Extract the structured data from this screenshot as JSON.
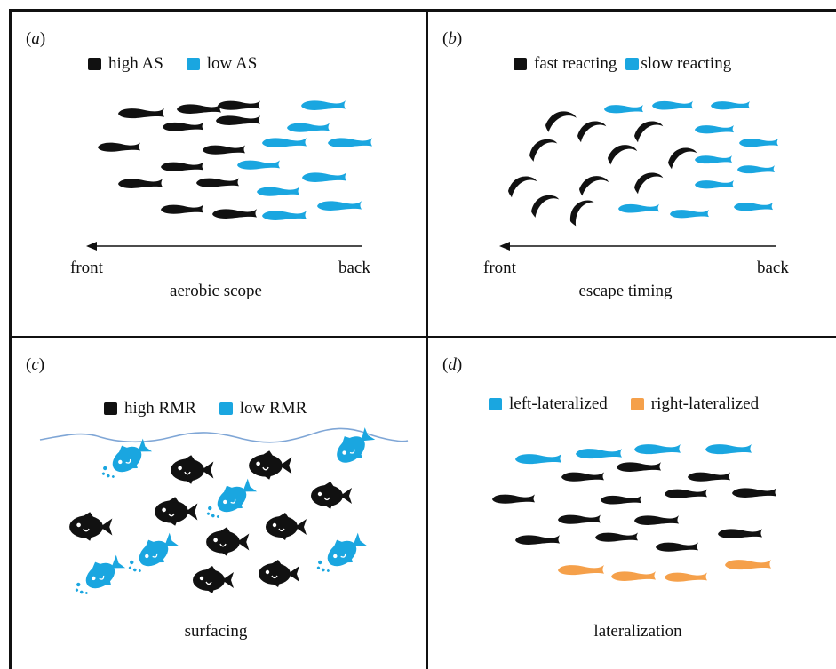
{
  "panels": [
    {
      "id": "a",
      "label_open": "(",
      "label_letter": "a",
      "label_close": ")",
      "legend": [
        {
          "label": "high AS",
          "color": "#111111"
        },
        {
          "label": "low AS",
          "color": "#1aa6e0"
        }
      ],
      "axis": {
        "start": "front",
        "end": "back"
      },
      "caption": "aerobic scope"
    },
    {
      "id": "b",
      "label_open": "(",
      "label_letter": "b",
      "label_close": ")",
      "legend": [
        {
          "label": "fast reacting",
          "color": "#111111"
        },
        {
          "label": "slow reacting",
          "color": "#1aa6e0"
        }
      ],
      "axis": {
        "start": "front",
        "end": "back"
      },
      "caption": "escape timing"
    },
    {
      "id": "c",
      "label_open": "(",
      "label_letter": "c",
      "label_close": ")",
      "legend": [
        {
          "label": "high RMR",
          "color": "#111111"
        },
        {
          "label": "low RMR",
          "color": "#1aa6e0"
        }
      ],
      "caption": "surfacing"
    },
    {
      "id": "d",
      "label_open": "(",
      "label_letter": "d",
      "label_close": ")",
      "legend": [
        {
          "label": "left-lateralized",
          "color": "#1aa6e0"
        },
        {
          "label": "right-lateralized",
          "color": "#f5a04a"
        }
      ],
      "caption": "lateralization"
    }
  ],
  "colors": {
    "dark": "#111111",
    "blue": "#1aa6e0",
    "orange": "#f5a04a",
    "water": "#7fa6d6"
  },
  "icons": [
    "fish-silhouette-icon",
    "round-fish-icon",
    "bubbles-icon",
    "arrow-left-icon"
  ]
}
